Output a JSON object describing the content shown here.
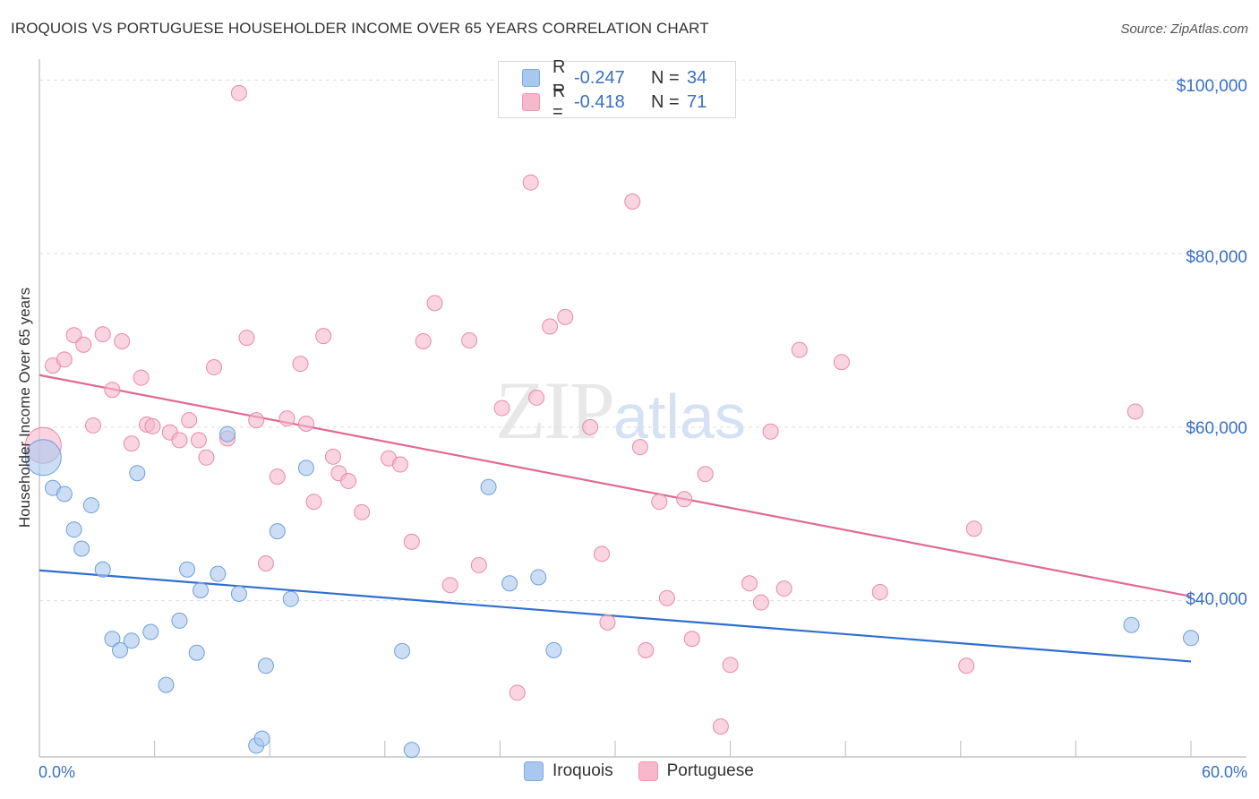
{
  "header": {
    "title": "IROQUOIS VS PORTUGUESE HOUSEHOLDER INCOME OVER 65 YEARS CORRELATION CHART",
    "source": "Source: ZipAtlas.com"
  },
  "watermark": {
    "zip": "ZIP",
    "atlas": "atlas"
  },
  "legend": {
    "rows": [
      {
        "r_label": "R =",
        "r_value": "-0.247",
        "n_label": "N =",
        "n_value": "34",
        "color": "#a9c8f0"
      },
      {
        "r_label": "R =",
        "r_value": "-0.418",
        "n_label": "N =",
        "n_value": "71",
        "color": "#f7b8cb"
      }
    ]
  },
  "bottom_legend": {
    "iroquois": "Iroquois",
    "portuguese": "Portuguese"
  },
  "colors": {
    "iroquois_fill": "#a9c8f0",
    "iroquois_stroke": "#6f9fd8",
    "iroquois_line": "#2f6fcf",
    "portuguese_fill": "#f7b8cb",
    "portuguese_stroke": "#e88aa8",
    "portuguese_line": "#e06a93",
    "tick_text": "#3a6fc4",
    "grid": "#dddddd"
  },
  "chart_data": {
    "type": "scatter",
    "title": "IROQUOIS VS PORTUGUESE HOUSEHOLDER INCOME OVER 65 YEARS CORRELATION CHART",
    "xlabel": "",
    "ylabel": "Householder Income Over 65 years",
    "xlim": [
      0,
      60
    ],
    "ylim": [
      22000,
      102000
    ],
    "x_tick_labels": {
      "left": "0.0%",
      "right": "60.0%"
    },
    "y_ticks": [
      {
        "value": 100000,
        "label": "$100,000"
      },
      {
        "value": 80000,
        "label": "$80,000"
      },
      {
        "value": 60000,
        "label": "$60,000"
      },
      {
        "value": 40000,
        "label": "$40,000"
      }
    ],
    "grid": true,
    "legend_position": "top-center",
    "series": [
      {
        "name": "Iroquois",
        "r": -0.247,
        "n": 34,
        "trend": {
          "x": [
            0,
            60
          ],
          "y": [
            43500,
            33000
          ]
        },
        "points": [
          [
            0.2,
            56500,
            "large"
          ],
          [
            0.7,
            53000
          ],
          [
            1.3,
            52300
          ],
          [
            1.8,
            48200
          ],
          [
            2.2,
            46000
          ],
          [
            2.7,
            51000
          ],
          [
            3.3,
            43600
          ],
          [
            3.8,
            35600
          ],
          [
            4.2,
            34300
          ],
          [
            4.8,
            35400
          ],
          [
            5.1,
            54700
          ],
          [
            5.8,
            36400
          ],
          [
            6.6,
            30300
          ],
          [
            7.3,
            37700
          ],
          [
            7.7,
            43600
          ],
          [
            8.4,
            41200
          ],
          [
            8.2,
            34000
          ],
          [
            9.3,
            43100
          ],
          [
            9.8,
            59200
          ],
          [
            10.4,
            40800
          ],
          [
            11.3,
            23300
          ],
          [
            11.6,
            24100
          ],
          [
            11.8,
            32500
          ],
          [
            12.4,
            48000
          ],
          [
            13.1,
            40200
          ],
          [
            13.9,
            55300
          ],
          [
            18.9,
            34200
          ],
          [
            19.4,
            22800
          ],
          [
            23.4,
            53100
          ],
          [
            24.5,
            42000
          ],
          [
            26.0,
            42700
          ],
          [
            26.8,
            34300
          ],
          [
            56.9,
            37200
          ],
          [
            60.0,
            35700
          ]
        ]
      },
      {
        "name": "Portuguese",
        "r": -0.418,
        "n": 71,
        "trend": {
          "x": [
            0,
            60
          ],
          "y": [
            66000,
            40500
          ]
        },
        "points": [
          [
            0.2,
            57900,
            "large"
          ],
          [
            0.7,
            67100
          ],
          [
            1.3,
            67800
          ],
          [
            1.8,
            70600
          ],
          [
            2.3,
            69500
          ],
          [
            2.8,
            60200
          ],
          [
            3.3,
            70700
          ],
          [
            3.8,
            64300
          ],
          [
            4.3,
            69900
          ],
          [
            4.8,
            58100
          ],
          [
            5.3,
            65700
          ],
          [
            5.6,
            60300
          ],
          [
            5.9,
            60100
          ],
          [
            6.8,
            59400
          ],
          [
            7.3,
            58500
          ],
          [
            7.8,
            60800
          ],
          [
            8.3,
            58500
          ],
          [
            8.7,
            56500
          ],
          [
            9.1,
            66900
          ],
          [
            9.8,
            58700
          ],
          [
            10.4,
            98500
          ],
          [
            10.8,
            70300
          ],
          [
            11.3,
            60800
          ],
          [
            11.8,
            44300
          ],
          [
            12.4,
            54300
          ],
          [
            12.9,
            61000
          ],
          [
            13.6,
            67300
          ],
          [
            13.9,
            60400
          ],
          [
            14.3,
            51400
          ],
          [
            14.8,
            70500
          ],
          [
            15.3,
            56600
          ],
          [
            15.6,
            54700
          ],
          [
            16.1,
            53800
          ],
          [
            16.8,
            50200
          ],
          [
            18.2,
            56400
          ],
          [
            18.8,
            55700
          ],
          [
            19.4,
            46800
          ],
          [
            20.0,
            69900
          ],
          [
            20.6,
            74300
          ],
          [
            21.4,
            41800
          ],
          [
            22.4,
            70000
          ],
          [
            22.9,
            44100
          ],
          [
            24.1,
            62200
          ],
          [
            24.9,
            29400
          ],
          [
            25.6,
            88200
          ],
          [
            25.9,
            63400
          ],
          [
            26.6,
            71600
          ],
          [
            27.4,
            72700
          ],
          [
            28.7,
            60000
          ],
          [
            29.3,
            45400
          ],
          [
            29.6,
            37500
          ],
          [
            30.9,
            86000
          ],
          [
            31.3,
            57700
          ],
          [
            31.6,
            34300
          ],
          [
            32.3,
            51400
          ],
          [
            32.7,
            40300
          ],
          [
            33.6,
            51700
          ],
          [
            34.0,
            35600
          ],
          [
            34.7,
            54600
          ],
          [
            35.5,
            25500
          ],
          [
            36.0,
            32600
          ],
          [
            37.0,
            42000
          ],
          [
            37.6,
            39800
          ],
          [
            38.1,
            59500
          ],
          [
            38.8,
            41400
          ],
          [
            39.6,
            68900
          ],
          [
            41.8,
            67500
          ],
          [
            43.8,
            41000
          ],
          [
            48.3,
            32500
          ],
          [
            48.7,
            48300
          ],
          [
            57.1,
            61800
          ]
        ]
      }
    ]
  }
}
